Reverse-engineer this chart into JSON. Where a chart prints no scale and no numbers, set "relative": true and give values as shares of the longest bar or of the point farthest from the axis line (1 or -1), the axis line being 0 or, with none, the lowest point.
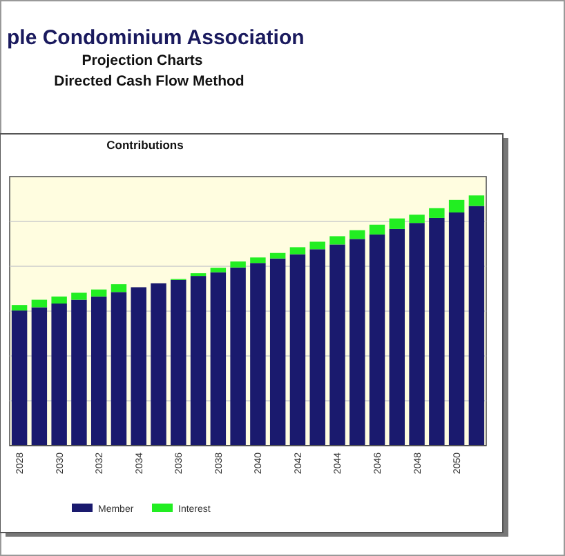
{
  "chart_data": {
    "type": "bar",
    "title": "Contributions",
    "annotations": [
      "ple Condominium Association",
      "Projection Charts",
      "Directed Cash Flow Method"
    ],
    "categories": [
      "2028",
      null,
      "2030",
      null,
      "2032",
      null,
      "2034",
      null,
      "2036",
      null,
      "2038",
      null,
      "2040",
      null,
      "2042",
      null,
      "2044",
      null,
      "2046",
      null,
      "2048",
      null,
      "2050",
      null
    ],
    "relative": true,
    "stacked": true,
    "grid": true,
    "legend": "bottom",
    "series": [
      {
        "name": "Member",
        "color": "#1a1a6e",
        "values": [
          0.54,
          0.553,
          0.568,
          0.583,
          0.596,
          0.614,
          0.633,
          0.649,
          0.662,
          0.678,
          0.693,
          0.712,
          0.73,
          0.748,
          0.765,
          0.785,
          0.804,
          0.826,
          0.844,
          0.866,
          0.89,
          0.91,
          0.932,
          0.958
        ]
      },
      {
        "name": "Interest",
        "color": "#22ee22",
        "values": [
          0.022,
          0.03,
          0.028,
          0.028,
          0.028,
          0.031,
          0,
          0,
          0.004,
          0.011,
          0.018,
          0.024,
          0.022,
          0.022,
          0.028,
          0.03,
          0.033,
          0.035,
          0.039,
          0.042,
          0.033,
          0.039,
          0.05,
          0.042
        ]
      }
    ]
  }
}
